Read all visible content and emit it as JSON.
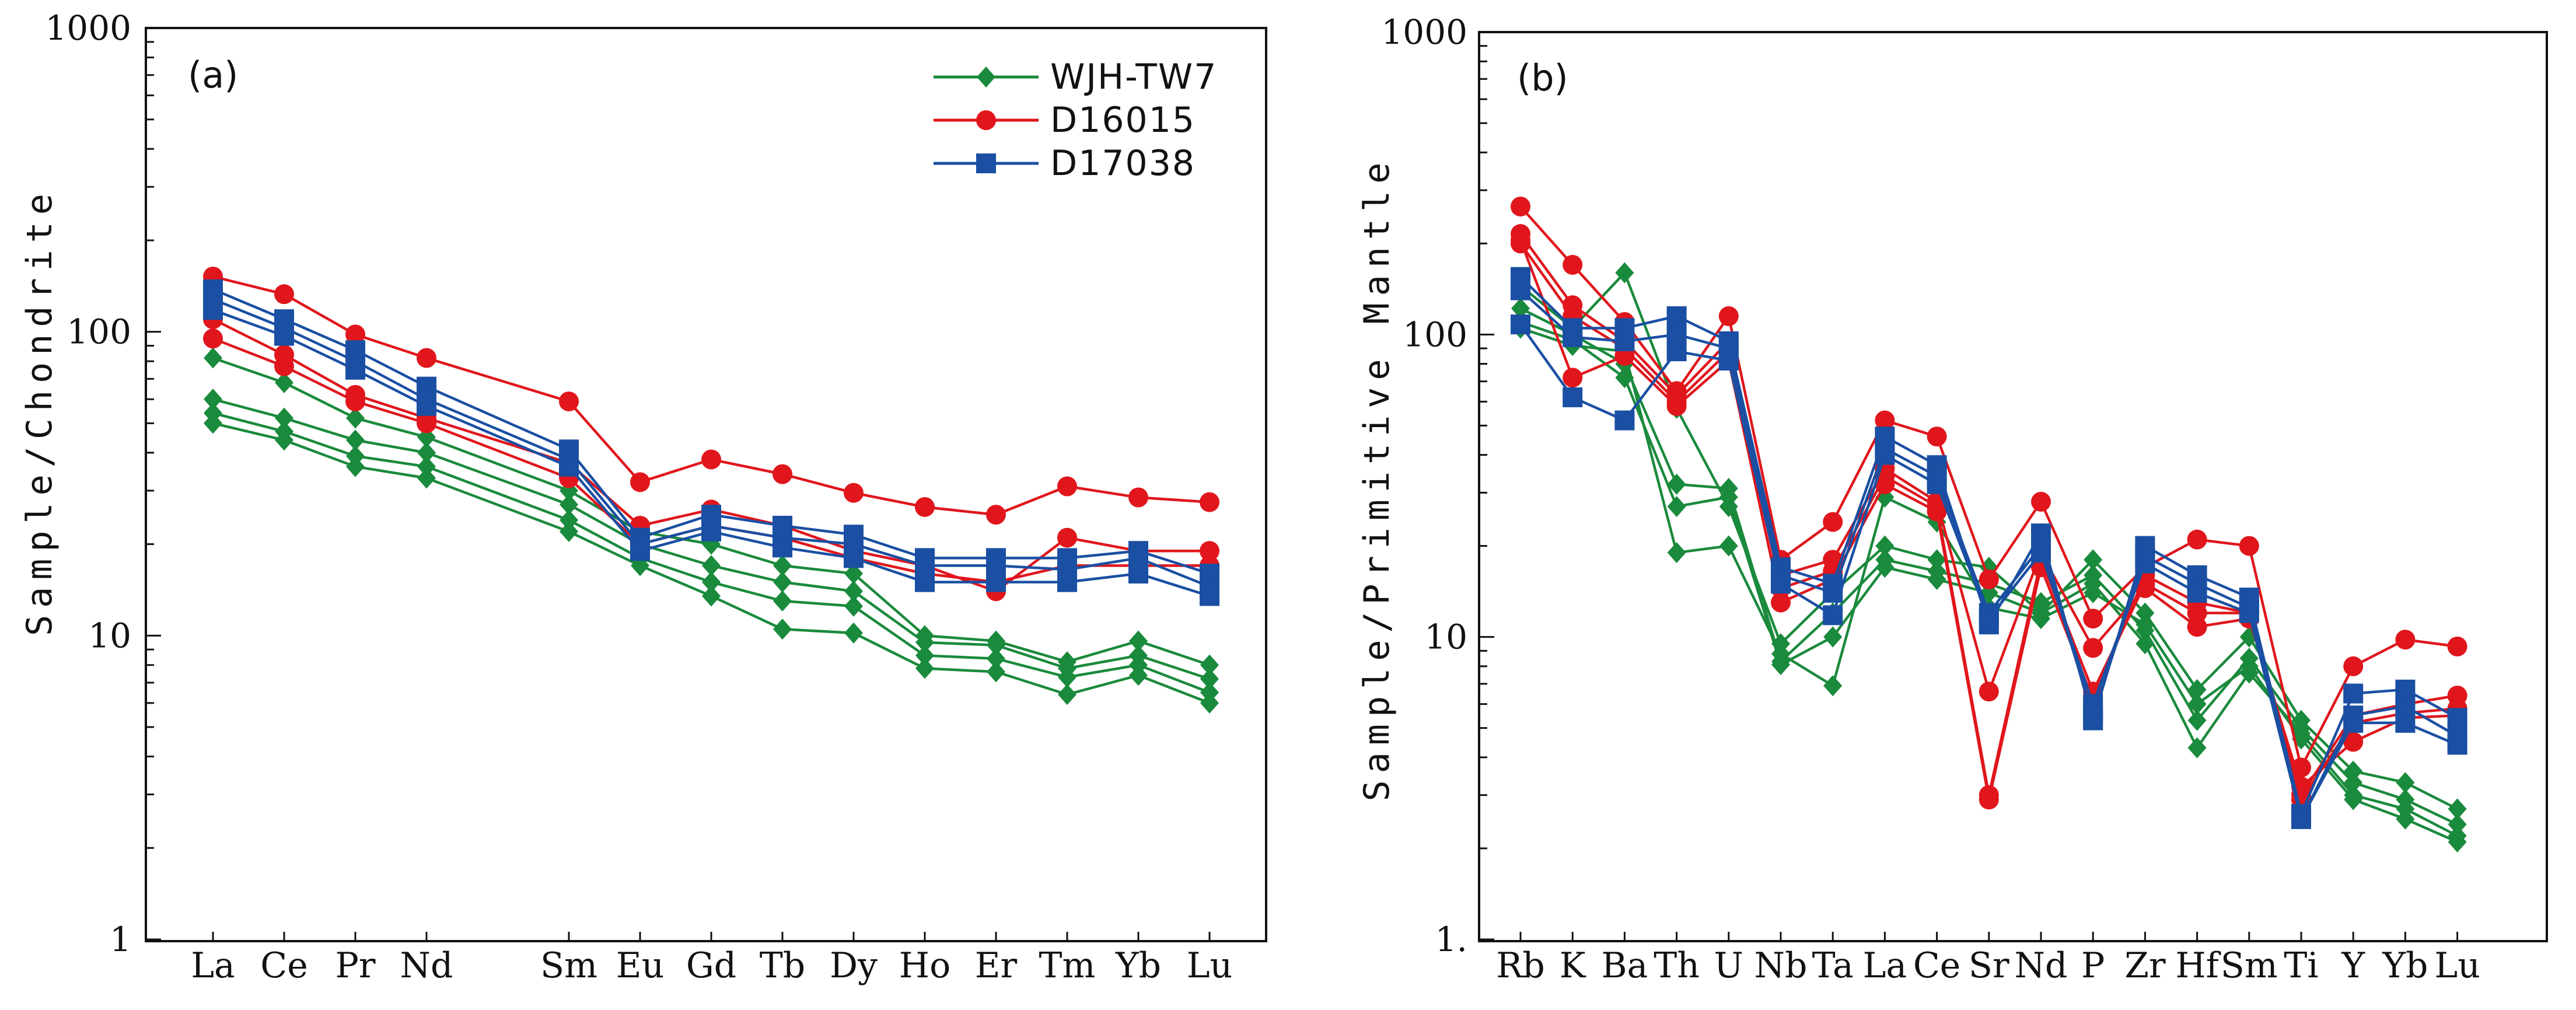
{
  "colors": {
    "WJH-TW7": "#1a8a3c",
    "D16015": "#e0161c",
    "D17038": "#1a4fa3"
  },
  "legend": [
    {
      "name": "WJH-TW7",
      "marker": "diamond"
    },
    {
      "name": "D16015",
      "marker": "circle"
    },
    {
      "name": "D17038",
      "marker": "square"
    }
  ],
  "chart_data": [
    {
      "type": "line",
      "panel_label": "(a)",
      "title": "",
      "xlabel": "",
      "ylabel": "Sample/Chondrite",
      "yscale": "log",
      "ylim": [
        1,
        1000
      ],
      "yticks": [
        "1",
        "10",
        "100",
        "1000"
      ],
      "grid": false,
      "legend_position": "top-right",
      "categories": [
        "La",
        "Ce",
        "Pr",
        "Nd",
        "Sm",
        "Eu",
        "Gd",
        "Tb",
        "Dy",
        "Ho",
        "Er",
        "Tm",
        "Yb",
        "Lu"
      ],
      "category_positions": [
        1,
        2,
        3,
        4,
        6,
        7,
        8,
        9,
        10,
        11,
        12,
        13,
        14,
        15
      ],
      "series": [
        {
          "name": "WJH-TW7",
          "values": [
            82,
            68,
            52,
            45,
            30,
            22,
            20,
            17,
            16,
            10,
            9.6,
            8.2,
            9.6,
            8.0
          ]
        },
        {
          "name": "WJH-TW7",
          "values": [
            60,
            52,
            44,
            40,
            27,
            20,
            17,
            15,
            14,
            9.5,
            9.3,
            7.8,
            8.6,
            7.2
          ]
        },
        {
          "name": "WJH-TW7",
          "values": [
            54,
            47,
            39,
            36,
            24,
            18,
            15,
            13,
            12.5,
            8.6,
            8.4,
            7.3,
            8.0,
            6.5
          ]
        },
        {
          "name": "WJH-TW7",
          "values": [
            50,
            44,
            36,
            33,
            22,
            17,
            13.5,
            10.5,
            10.2,
            7.8,
            7.6,
            6.4,
            7.4,
            6.0
          ]
        },
        {
          "name": "D16015",
          "values": [
            152,
            133,
            98,
            82,
            59,
            32,
            38,
            34,
            29.5,
            26.5,
            25,
            31,
            28.5,
            27.5
          ]
        },
        {
          "name": "D16015",
          "values": [
            110,
            84,
            62,
            52,
            37,
            23,
            26,
            23,
            19,
            17,
            14,
            21,
            19,
            19
          ]
        },
        {
          "name": "D16015",
          "values": [
            95,
            77,
            59,
            50,
            33,
            20,
            23,
            21,
            18,
            16,
            15,
            17,
            17,
            17
          ]
        },
        {
          "name": "D17038",
          "values": [
            138,
            110,
            87,
            66,
            41,
            21,
            25,
            23,
            21.5,
            18,
            18,
            18,
            19,
            16
          ]
        },
        {
          "name": "D17038",
          "values": [
            128,
            103,
            80,
            60,
            38,
            20,
            23,
            21,
            20,
            17,
            17,
            16.5,
            18,
            14.5
          ]
        },
        {
          "name": "D17038",
          "values": [
            118,
            97,
            75,
            57,
            36,
            19,
            22,
            19.5,
            18,
            15,
            15,
            15,
            16,
            13.5
          ]
        }
      ]
    },
    {
      "type": "line",
      "panel_label": "(b)",
      "title": "",
      "xlabel": "",
      "ylabel": "Sample/Primitive Mantle",
      "yscale": "log",
      "ylim": [
        1,
        1000
      ],
      "yticks": [
        "1.",
        "10",
        "100",
        "1000"
      ],
      "grid": false,
      "categories": [
        "Rb",
        "K",
        "Ba",
        "Th",
        "U",
        "Nb",
        "Ta",
        "La",
        "Ce",
        "Sr",
        "Nd",
        "P",
        "Zr",
        "Hf",
        "Sm",
        "Ti",
        "Y",
        "Yb",
        "Lu"
      ],
      "category_positions": [
        1,
        2,
        3,
        4,
        5,
        6,
        7,
        8,
        9,
        10,
        11,
        12,
        13,
        14,
        15,
        16,
        17,
        18,
        19
      ],
      "series": [
        {
          "name": "WJH-TW7",
          "values": [
            145,
            105,
            160,
            57,
            27,
            9.5,
            14,
            20,
            18,
            17,
            12,
            18,
            12,
            6.7,
            10,
            5.3,
            3.6,
            3.3,
            2.7
          ]
        },
        {
          "name": "WJH-TW7",
          "values": [
            122,
            100,
            80,
            32,
            31,
            8.3,
            12,
            18,
            16.5,
            15,
            13,
            16,
            10.5,
            5.3,
            8.5,
            5.0,
            3.3,
            2.9,
            2.4
          ]
        },
        {
          "name": "WJH-TW7",
          "values": [
            110,
            96,
            72,
            27,
            29,
            8.1,
            10,
            17,
            15.5,
            14,
            12,
            15,
            9.5,
            4.3,
            7.6,
            4.8,
            3.0,
            2.7,
            2.2
          ]
        },
        {
          "name": "WJH-TW7",
          "values": [
            105,
            92,
            88,
            19,
            20,
            8.8,
            6.9,
            29,
            24,
            12.5,
            11.5,
            14,
            11,
            6.0,
            8.0,
            4.6,
            2.9,
            2.5,
            2.1
          ]
        },
        {
          "name": "D16015",
          "values": [
            265,
            170,
            110,
            65,
            115,
            18,
            24,
            52,
            46,
            15.5,
            28,
            11.5,
            17,
            21,
            20,
            3.7,
            8.0,
            9.8,
            9.3
          ]
        },
        {
          "name": "D16015",
          "values": [
            215,
            125,
            95,
            63,
            95,
            16,
            18,
            36,
            28,
            6.6,
            19,
            9.2,
            14.5,
            10.8,
            11.5,
            3.2,
            4.5,
            5.4,
            5.5
          ]
        },
        {
          "name": "D16015",
          "values": [
            205,
            72,
            85,
            58,
            82,
            13,
            15.5,
            32,
            26,
            2.9,
            17,
            6.2,
            16,
            13,
            12,
            2.9,
            5.2,
            5.6,
            5.8
          ]
        },
        {
          "name": "D16015",
          "values": [
            200,
            115,
            90,
            60,
            88,
            14.5,
            16.5,
            34,
            27,
            3.0,
            18,
            6.6,
            15,
            12,
            12,
            3.0,
            5.5,
            6.0,
            6.4
          ]
        },
        {
          "name": "D17038",
          "values": [
            155,
            105,
            105,
            115,
            95,
            17,
            15,
            46,
            37,
            11,
            22,
            5.3,
            20,
            16,
            13.5,
            2.6,
            6.5,
            6.7,
            5.4
          ]
        },
        {
          "name": "D17038",
          "values": [
            140,
            98,
            95,
            100,
            90,
            16,
            14,
            42,
            34,
            12,
            20,
            5.5,
            18.5,
            15,
            12.5,
            2.5,
            5.5,
            5.9,
            4.7
          ]
        },
        {
          "name": "D17038",
          "values": [
            108,
            62,
            52,
            88,
            82,
            15,
            11.8,
            40,
            32,
            11.5,
            19,
            6.0,
            17.5,
            14,
            12,
            2.5,
            5.2,
            5.2,
            4.4
          ]
        }
      ]
    }
  ]
}
